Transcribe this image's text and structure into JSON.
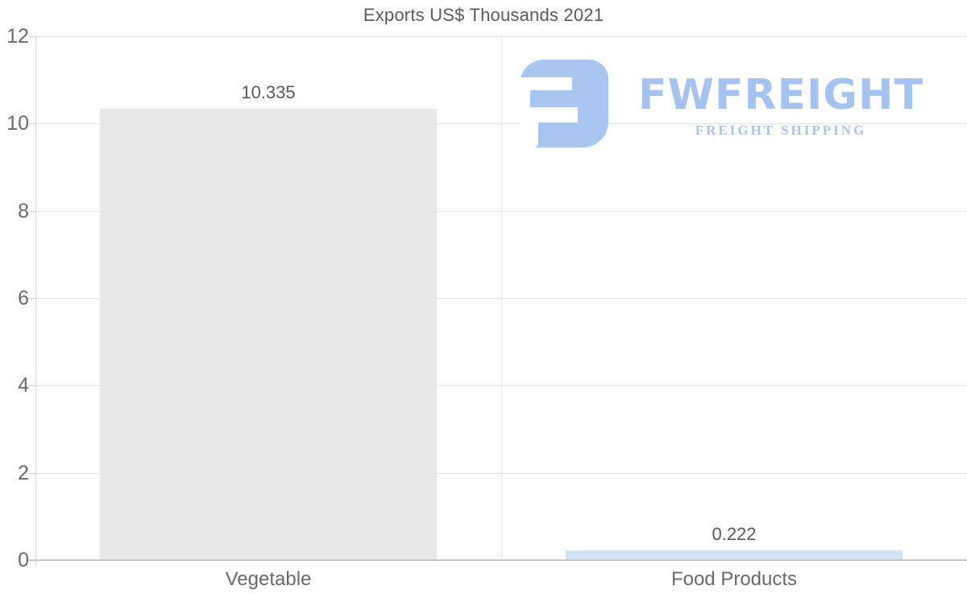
{
  "page": {
    "background": "#ffffff"
  },
  "chart_data": {
    "type": "bar",
    "title": "Exports US$ Thousands 2021",
    "categories": [
      "Vegetable",
      "Food Products"
    ],
    "values": [
      10.335,
      0.222
    ],
    "value_labels": [
      "10.335",
      "0.222"
    ],
    "bar_colors": [
      "#e8e8e8",
      "#cfe2f8"
    ],
    "ylim": [
      0,
      12
    ],
    "yticks": [
      0,
      2,
      4,
      6,
      8,
      10,
      12
    ],
    "grid": true,
    "legend": false,
    "xlabel": "",
    "ylabel": ""
  },
  "logo": {
    "brand": "FWFREIGHT",
    "tagline": "FREIGHT SHIPPING",
    "mark_color": "#a9c6f1",
    "brand_color": "#a6c3ef",
    "tagline_color": "#a9c4ea"
  },
  "colors": {
    "grid": "#e4e4e4",
    "baseline": "#c6c6c6",
    "axis": "#d6d6d6",
    "title_text": "#5a5a5a",
    "tick_text": "#6a6a6a",
    "value_text": "#595959"
  }
}
